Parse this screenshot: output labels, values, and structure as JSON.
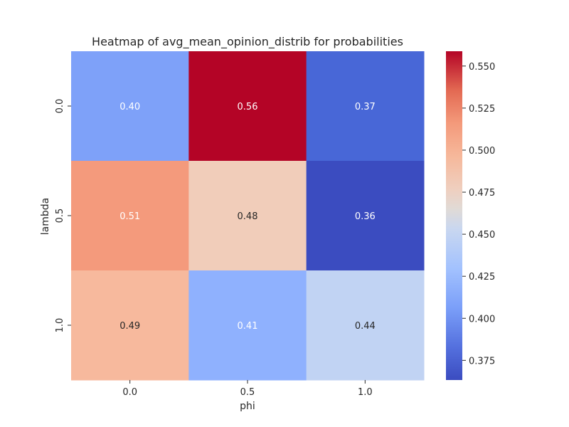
{
  "chart_data": {
    "type": "heatmap",
    "title": "Heatmap of avg_mean_opinion_distrib for probabilities",
    "xlabel": "phi",
    "ylabel": "lambda",
    "x_categories": [
      "0.0",
      "0.5",
      "1.0"
    ],
    "y_categories": [
      "0.0",
      "0.5",
      "1.0"
    ],
    "values": [
      [
        0.4,
        0.56,
        0.37
      ],
      [
        0.51,
        0.48,
        0.36
      ],
      [
        0.49,
        0.41,
        0.44
      ]
    ],
    "annotations": [
      [
        "0.40",
        "0.56",
        "0.37"
      ],
      [
        "0.51",
        "0.48",
        "0.36"
      ],
      [
        "0.49",
        "0.41",
        "0.44"
      ]
    ],
    "colormap": "coolwarm",
    "color_range": [
      0.3633,
      0.5588
    ],
    "colorbar": {
      "ticks": [
        0.375,
        0.4,
        0.425,
        0.45,
        0.475,
        0.5,
        0.525,
        0.55
      ],
      "tick_labels": [
        "0.375",
        "0.400",
        "0.425",
        "0.450",
        "0.475",
        "0.500",
        "0.525",
        "0.550"
      ]
    },
    "cell_colors": [
      [
        "#7ea1f9",
        "#b40426",
        "#4867d7"
      ],
      [
        "#f49a7c",
        "#f1cdba",
        "#3b4cc0"
      ],
      [
        "#f7b99d",
        "#8fb1fe",
        "#c1d3f3"
      ]
    ],
    "annotation_colors": {
      "light": "#ffffff",
      "dark": "#262626"
    }
  }
}
